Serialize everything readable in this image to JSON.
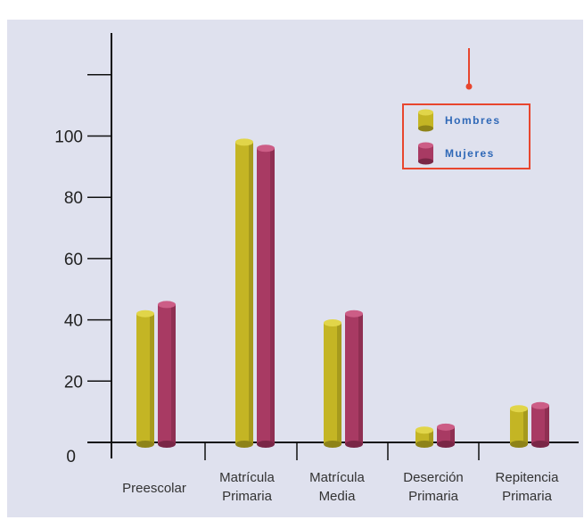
{
  "chart_data": {
    "type": "bar",
    "categories": [
      [
        "Preescolar"
      ],
      [
        "Matrícula",
        "Primaria"
      ],
      [
        "Matrícula",
        "Media"
      ],
      [
        "Deserción",
        "Primaria"
      ],
      [
        "Repitencia",
        "Primaria"
      ]
    ],
    "series": [
      {
        "name": "Hombres",
        "color": "#c4b524",
        "values": [
          42,
          98,
          39,
          4,
          11
        ]
      },
      {
        "name": "Mujeres",
        "color": "#a83a63",
        "values": [
          45,
          96,
          42,
          5,
          12
        ]
      }
    ],
    "yticks": [
      "0",
      "20",
      "40",
      "60",
      "80",
      "100"
    ],
    "ylim": [
      0,
      120
    ],
    "title": "",
    "xlabel": "",
    "ylabel": "",
    "legend_position": "top-right",
    "legend_border_color": "#e8462e",
    "grid": false
  }
}
